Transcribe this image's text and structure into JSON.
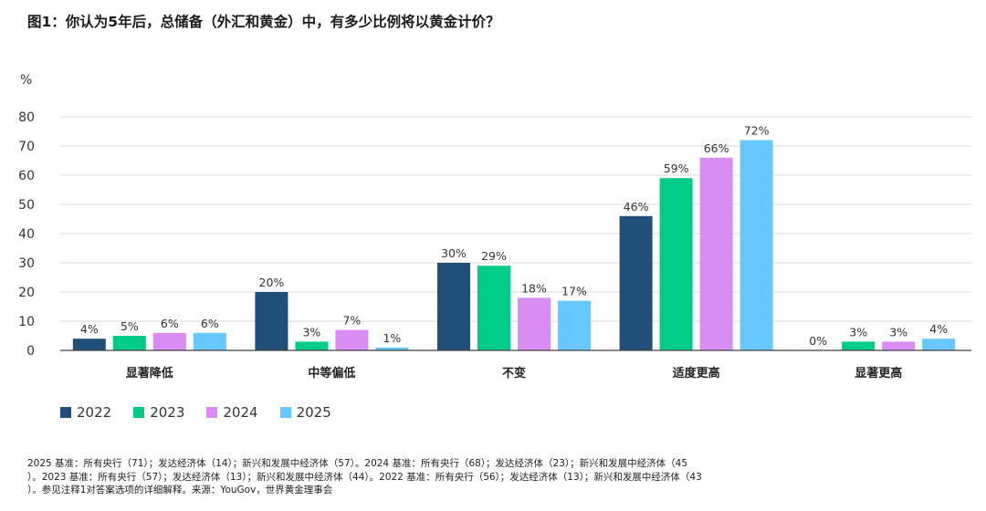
{
  "title": "图1：你认为5年后，总储备（外汇和黄金）中，有多少比例将以黄金计价？",
  "unit_label": "%",
  "legend": [
    {
      "label": "2022",
      "color": "#1f4e79"
    },
    {
      "label": "2023",
      "color": "#00cc88"
    },
    {
      "label": "2024",
      "color": "#d98cf2"
    },
    {
      "label": "2025",
      "color": "#66c8ff"
    }
  ],
  "footnote": [
    "2025 基准：所有央行（71）；发达经济体（14）；新兴和发展中经济体（57）。2024 基准：所有央行（68）；发达经济体（23）；新兴和发展中经济体（45",
    "）。2023 基准：所有央行（57）；发达经济体（13）；新兴和发展中经济体（44）。2022 基准：所有央行（56）；发达经济体（13）；新兴和发展中经济体（43",
    "）。参见注释1对答案选项的详细解释。来源：YouGov，世界黄金理事会"
  ],
  "chart_data": {
    "type": "bar",
    "categories": [
      "显著降低",
      "中等偏低",
      "不变",
      "适度更高",
      "显著更高"
    ],
    "series": [
      {
        "name": "2022",
        "color": "#1f4e79",
        "values": [
          4,
          20,
          30,
          46,
          0
        ],
        "labels": [
          "4%",
          "20%",
          "30%",
          "46%",
          "0%"
        ]
      },
      {
        "name": "2023",
        "color": "#00cc88",
        "values": [
          5,
          3,
          29,
          59,
          3
        ],
        "labels": [
          "5%",
          "3%",
          "29%",
          "59%",
          "3%"
        ]
      },
      {
        "name": "2024",
        "color": "#d98cf2",
        "values": [
          6,
          7,
          18,
          66,
          3
        ],
        "labels": [
          "6%",
          "7%",
          "18%",
          "66%",
          "3%"
        ]
      },
      {
        "name": "2025",
        "color": "#66c8ff",
        "values": [
          6,
          1,
          17,
          72,
          4
        ],
        "labels": [
          "6%",
          "1%",
          "17%",
          "72%",
          "4%"
        ]
      }
    ],
    "ylabel": "%",
    "ylim": [
      0,
      80
    ],
    "yticks": [
      0,
      10,
      20,
      30,
      40,
      50,
      60,
      70,
      80
    ],
    "grid": true,
    "legend_position": "bottom-left"
  }
}
